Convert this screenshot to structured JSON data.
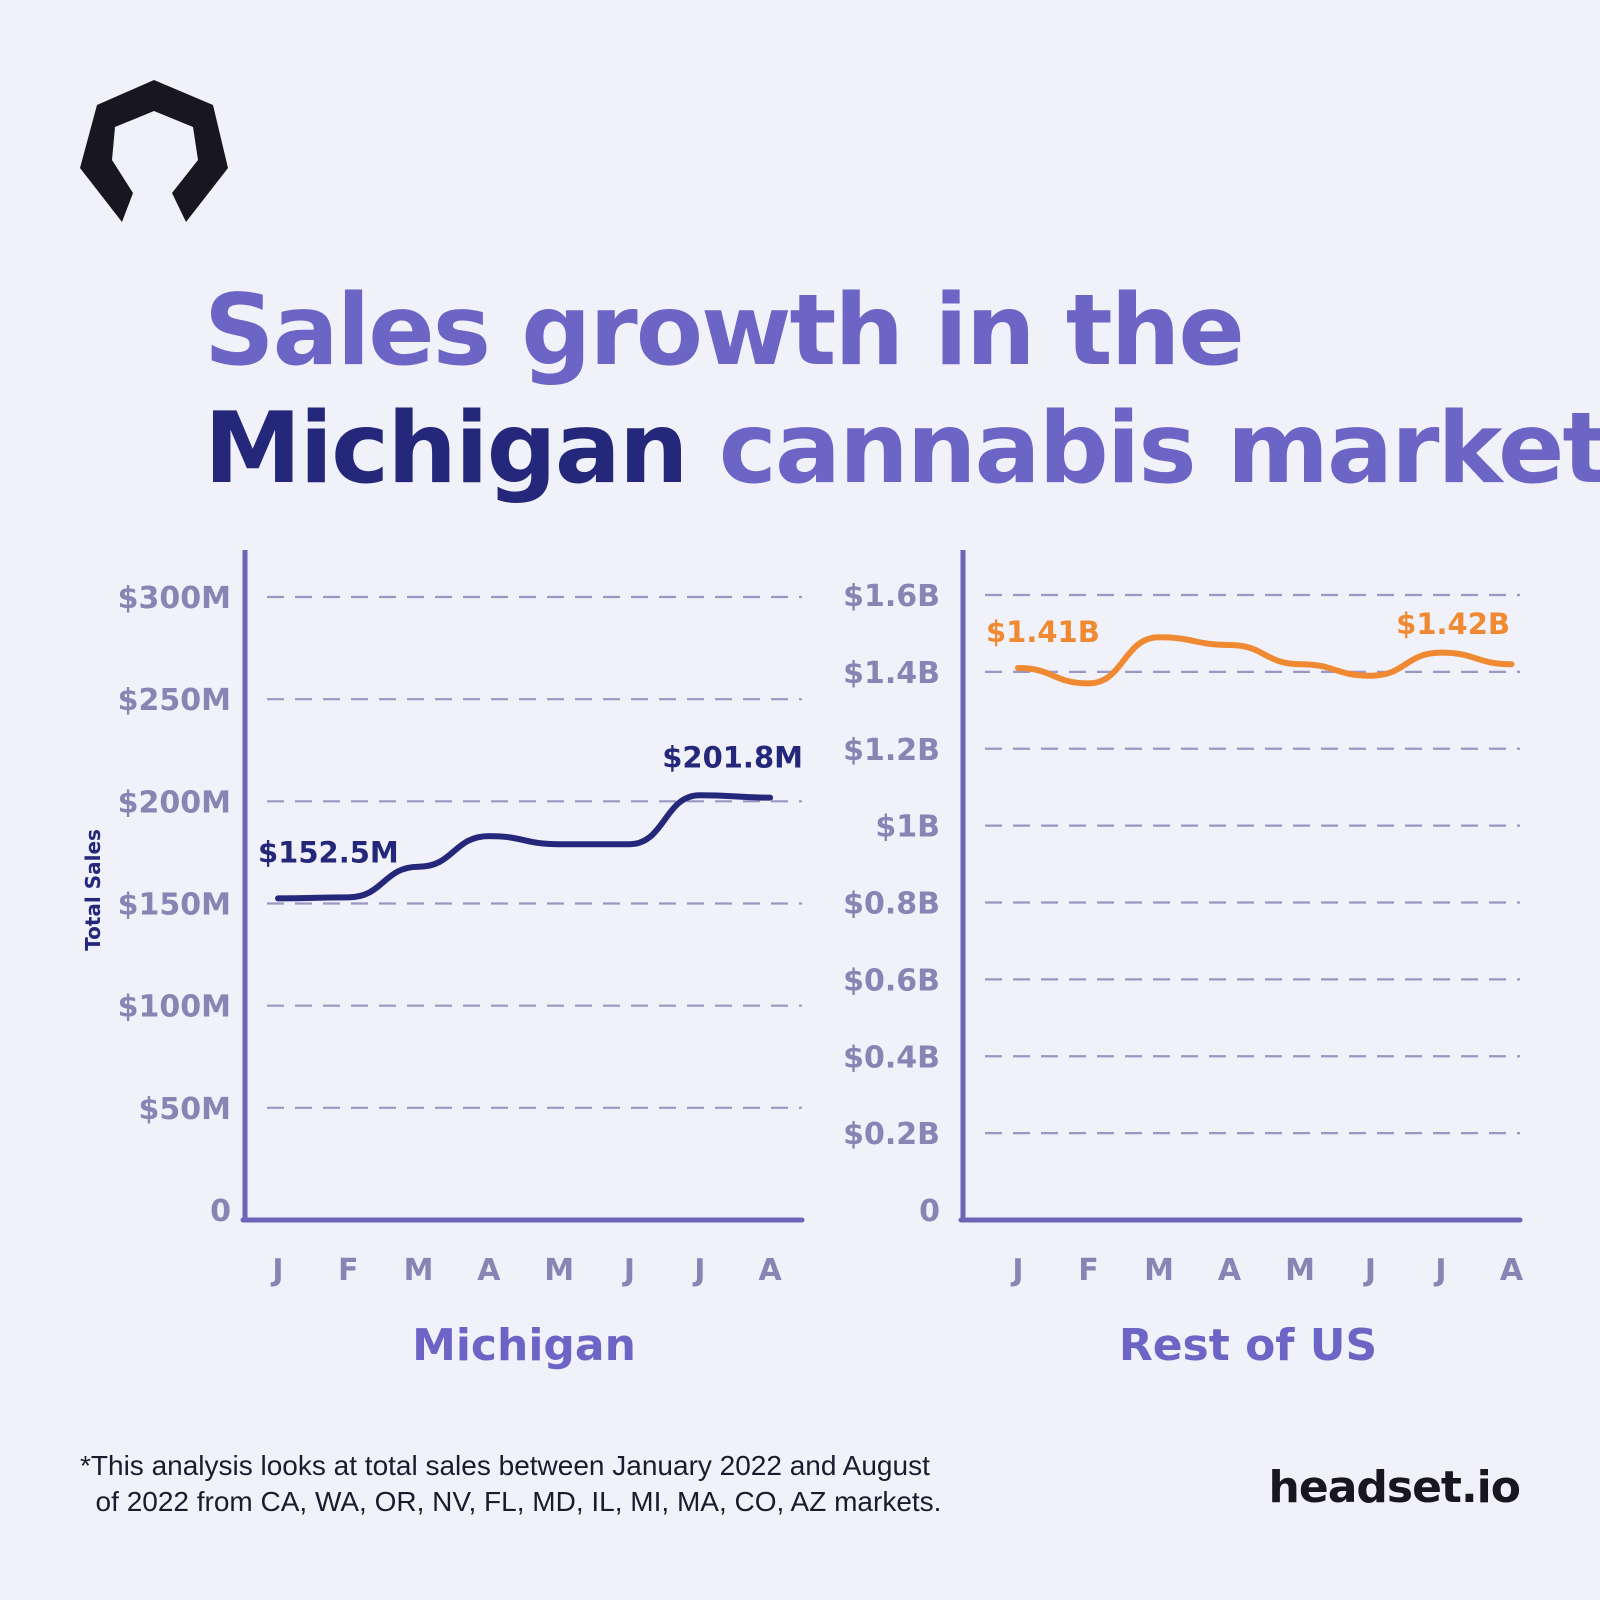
{
  "logo": {
    "name": "headset-logo-icon"
  },
  "title": {
    "line1": "Sales growth in the",
    "line2_accent": "Michigan",
    "line2_rest": "cannabis market"
  },
  "chart_data": [
    {
      "type": "line",
      "title": "Michigan",
      "ylabel": "Total Sales",
      "xlabel": "",
      "categories": [
        "J",
        "F",
        "M",
        "A",
        "M",
        "J",
        "J",
        "A"
      ],
      "y_ticks": [
        0,
        50,
        100,
        150,
        200,
        250,
        300
      ],
      "y_tick_labels": [
        "0",
        "$50M",
        "$100M",
        "$150M",
        "$200M",
        "$250M",
        "$300M"
      ],
      "ylim": [
        0,
        320
      ],
      "grid": true,
      "series": [
        {
          "color": "#25287a",
          "values": [
            152.5,
            153,
            168,
            183,
            179,
            179,
            203,
            201.8
          ]
        }
      ],
      "annotations": [
        {
          "text": "$152.5M",
          "category_index": 0,
          "value": 152.5
        },
        {
          "text": "$201.8M",
          "category_index": 7,
          "value": 201.8
        }
      ]
    },
    {
      "type": "line",
      "title": "Rest of US",
      "ylabel": "",
      "xlabel": "",
      "categories": [
        "J",
        "F",
        "M",
        "A",
        "M",
        "J",
        "J",
        "A"
      ],
      "y_ticks": [
        0,
        0.2,
        0.4,
        0.6,
        0.8,
        1.0,
        1.2,
        1.4,
        1.6
      ],
      "y_tick_labels": [
        "0",
        "$0.2B",
        "$0.4B",
        "$0.6B",
        "$0.8B",
        "$1B",
        "$1.2B",
        "$1.4B",
        "$1.6B"
      ],
      "ylim": [
        0,
        1.71
      ],
      "grid": true,
      "series": [
        {
          "color": "#f08a32",
          "values": [
            1.41,
            1.37,
            1.49,
            1.47,
            1.42,
            1.39,
            1.45,
            1.42
          ]
        }
      ],
      "annotations": [
        {
          "text": "$1.41B",
          "category_index": 0,
          "value": 1.41
        },
        {
          "text": "$1.42B",
          "category_index": 7,
          "value": 1.42
        }
      ]
    }
  ],
  "colors": {
    "axis": "#6c65b8",
    "grid": "#9b97c3",
    "tick_label": "#8785b3",
    "panel_title": "#6c65c6",
    "ylabel": "#25287a"
  },
  "footnote": "*This analysis looks at total sales between January 2022 and August\n  of 2022 from CA, WA, OR, NV, FL, MD, IL, MI, MA, CO, AZ markets.",
  "brand": "headset.io"
}
